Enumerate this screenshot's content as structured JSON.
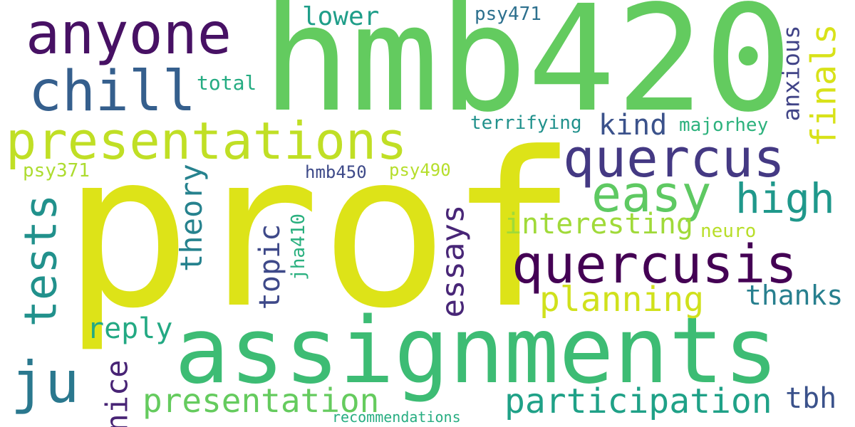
{
  "words": [
    {
      "text": "prof",
      "color": "#dde318",
      "rotated": false
    },
    {
      "text": "hmb420",
      "color": "#63cb5f",
      "rotated": false
    },
    {
      "text": "assignments",
      "color": "#3dbc74",
      "rotated": false
    },
    {
      "text": "anyone",
      "color": "#471164",
      "rotated": false
    },
    {
      "text": "chill",
      "color": "#355f8d",
      "rotated": false
    },
    {
      "text": "presentations",
      "color": "#c0df25",
      "rotated": false
    },
    {
      "text": "quercus",
      "color": "#443983",
      "rotated": false
    },
    {
      "text": "easy",
      "color": "#5ec962",
      "rotated": false
    },
    {
      "text": "quercusis",
      "color": "#440154",
      "rotated": false
    },
    {
      "text": "high",
      "color": "#1f988b",
      "rotated": false
    },
    {
      "text": "tests",
      "color": "#21918c",
      "rotated": true
    },
    {
      "text": "ju",
      "color": "#2a788e",
      "rotated": false
    },
    {
      "text": "finals",
      "color": "#d8e219",
      "rotated": true
    },
    {
      "text": "anxious",
      "color": "#414487",
      "rotated": true
    },
    {
      "text": "lower",
      "color": "#1f9e89",
      "rotated": false
    },
    {
      "text": "psy471",
      "color": "#2d708e",
      "rotated": false
    },
    {
      "text": "total",
      "color": "#25ac82",
      "rotated": false
    },
    {
      "text": "terrifying",
      "color": "#21918c",
      "rotated": false
    },
    {
      "text": "kind",
      "color": "#3b528b",
      "rotated": false
    },
    {
      "text": "majorhey",
      "color": "#2db27d",
      "rotated": false
    },
    {
      "text": "psy371",
      "color": "#addc30",
      "rotated": false
    },
    {
      "text": "hmb450",
      "color": "#3e4a89",
      "rotated": false
    },
    {
      "text": "psy490",
      "color": "#b5de2b",
      "rotated": false
    },
    {
      "text": "theory",
      "color": "#26828e",
      "rotated": true
    },
    {
      "text": "topic",
      "color": "#3e4989",
      "rotated": true
    },
    {
      "text": "jha410",
      "color": "#2ab07f",
      "rotated": true
    },
    {
      "text": "essays",
      "color": "#482677",
      "rotated": true
    },
    {
      "text": "interesting",
      "color": "#a0da39",
      "rotated": false
    },
    {
      "text": "neuro",
      "color": "#b8de29",
      "rotated": false
    },
    {
      "text": "planning",
      "color": "#d0e11c",
      "rotated": false
    },
    {
      "text": "thanks",
      "color": "#277f8e",
      "rotated": false
    },
    {
      "text": "reply",
      "color": "#23a983",
      "rotated": false
    },
    {
      "text": "nice",
      "color": "#482475",
      "rotated": true
    },
    {
      "text": "presentation",
      "color": "#65cb5e",
      "rotated": false
    },
    {
      "text": "participation",
      "color": "#1fa187",
      "rotated": false
    },
    {
      "text": "tbh",
      "color": "#3b528b",
      "rotated": false
    },
    {
      "text": "recommendations",
      "color": "#27ad81",
      "rotated": false
    }
  ]
}
